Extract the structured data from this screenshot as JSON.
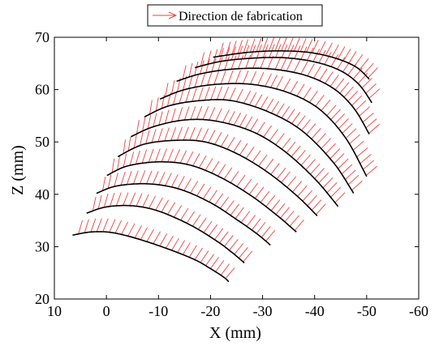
{
  "chart_data": {
    "type": "line",
    "xlabel": "X (mm)",
    "ylabel": "Z (mm)",
    "xlim": [
      10,
      -60
    ],
    "ylim": [
      20,
      70
    ],
    "x_reversed": true,
    "x_ticks": [
      10,
      0,
      -10,
      -20,
      -30,
      -40,
      -50,
      -60
    ],
    "y_ticks": [
      20,
      30,
      40,
      50,
      60,
      70
    ],
    "grid": false,
    "legend": {
      "label": "Direction de fabrication",
      "placement": "top-center",
      "color": "#ff3b3b"
    },
    "path_color": "#000000",
    "direction_color": "#ff3b3b",
    "direction_vector_length_mm": 3,
    "series": [
      {
        "x": [
          6.5,
          3,
          -1,
          -6,
          -12,
          -17,
          -20,
          -22.5,
          -23.5
        ],
        "y": [
          32.2,
          32.8,
          32.7,
          31.5,
          29.5,
          27.5,
          25.8,
          24.2,
          23.3
        ]
      },
      {
        "x": [
          3.8,
          0,
          -5,
          -10,
          -16,
          -21,
          -24,
          -26.5
        ],
        "y": [
          36.4,
          37.6,
          37.8,
          36.8,
          34.2,
          31.2,
          29.0,
          26.9
        ]
      },
      {
        "x": [
          1.9,
          -2,
          -8,
          -14,
          -20,
          -25,
          -29,
          -31.5
        ],
        "y": [
          40.2,
          41.6,
          42.0,
          41.0,
          38.4,
          35.2,
          32.4,
          30.3
        ]
      },
      {
        "x": [
          -0.1,
          -4,
          -10,
          -16,
          -22,
          -28,
          -33,
          -36.5
        ],
        "y": [
          43.6,
          45.4,
          46.2,
          45.6,
          43.2,
          39.6,
          35.8,
          32.8
        ]
      },
      {
        "x": [
          -2.2,
          -7,
          -13,
          -19,
          -25,
          -31,
          -36.5,
          -40.5
        ],
        "y": [
          47.2,
          49.5,
          50.3,
          50.0,
          47.8,
          44.2,
          39.8,
          35.9
        ]
      },
      {
        "x": [
          -4.7,
          -9,
          -15,
          -21,
          -28,
          -34,
          -40,
          -44.5
        ],
        "y": [
          51.0,
          52.9,
          54.2,
          54.0,
          52.0,
          48.4,
          43.0,
          37.7
        ]
      },
      {
        "x": [
          -7.3,
          -12,
          -18,
          -24,
          -31,
          -37.5,
          -43.5,
          -47.5
        ],
        "y": [
          54.8,
          56.9,
          57.9,
          57.9,
          55.8,
          52.2,
          46.2,
          40.2
        ]
      },
      {
        "x": [
          -10.3,
          -15,
          -21,
          -28,
          -35,
          -41,
          -46,
          -50
        ],
        "y": [
          58.2,
          60.0,
          61.0,
          61.0,
          59.4,
          56.2,
          50.7,
          43.4
        ]
      },
      {
        "x": [
          -13.5,
          -18,
          -24,
          -31,
          -38,
          -43.5,
          -47.5,
          -50.5
        ],
        "y": [
          61.6,
          63.0,
          63.9,
          64.0,
          62.8,
          60.3,
          56.5,
          51.5
        ]
      },
      {
        "x": [
          -17,
          -22,
          -28,
          -34,
          -40,
          -45,
          -48.5,
          -51
        ],
        "y": [
          64.2,
          65.4,
          66.0,
          66.1,
          65.3,
          63.6,
          61.0,
          57.5
        ]
      },
      {
        "x": [
          -20.5,
          -27,
          -33,
          -39,
          -44,
          -48,
          -50.5
        ],
        "y": [
          66.2,
          67.1,
          67.4,
          67.1,
          66.0,
          64.3,
          62.0
        ]
      }
    ]
  }
}
